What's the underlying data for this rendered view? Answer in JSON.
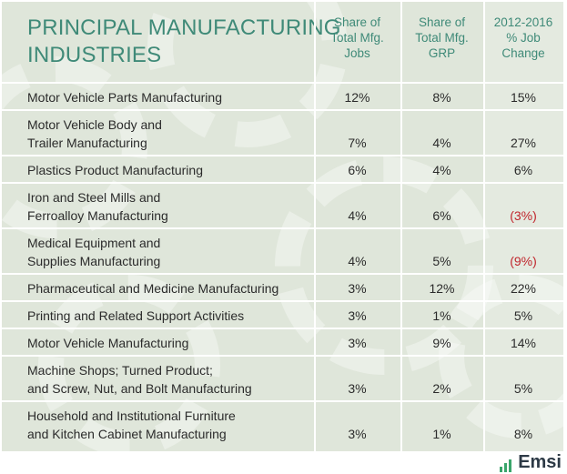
{
  "header": {
    "title": [
      "PRINCIPAL MANUFACTURING",
      "INDUSTRIES"
    ],
    "columns": [
      [
        "Share of",
        "Total Mfg.",
        "Jobs"
      ],
      [
        "Share of",
        "Total Mfg.",
        "GRP"
      ],
      [
        "2012-2016",
        "% Job",
        "Change"
      ]
    ]
  },
  "rows": [
    {
      "name": [
        "Motor Vehicle Parts Manufacturing"
      ],
      "cells": [
        "12%",
        "8%",
        "15%"
      ]
    },
    {
      "name": [
        "Motor Vehicle Body and",
        "Trailer Manufacturing"
      ],
      "cells": [
        "7%",
        "4%",
        "27%"
      ]
    },
    {
      "name": [
        "Plastics Product Manufacturing"
      ],
      "cells": [
        "6%",
        "4%",
        "6%"
      ]
    },
    {
      "name": [
        "Iron and Steel Mills and",
        "Ferroalloy Manufacturing"
      ],
      "cells": [
        "4%",
        "6%",
        "(3%)"
      ]
    },
    {
      "name": [
        "Medical Equipment and",
        "Supplies Manufacturing"
      ],
      "cells": [
        "4%",
        "5%",
        "(9%)"
      ]
    },
    {
      "name": [
        "Pharmaceutical and Medicine Manufacturing"
      ],
      "cells": [
        "3%",
        "12%",
        "22%"
      ]
    },
    {
      "name": [
        "Printing and Related Support Activities"
      ],
      "cells": [
        "3%",
        "1%",
        "5%"
      ]
    },
    {
      "name": [
        "Motor Vehicle Manufacturing"
      ],
      "cells": [
        "3%",
        "9%",
        "14%"
      ]
    },
    {
      "name": [
        "Machine Shops; Turned Product;",
        "and Screw, Nut, and Bolt Manufacturing"
      ],
      "cells": [
        "3%",
        "2%",
        "5%"
      ]
    },
    {
      "name": [
        "Household and Institutional Furniture",
        "and Kitchen Cabinet Manufacturing"
      ],
      "cells": [
        "3%",
        "1%",
        "8%"
      ]
    }
  ],
  "footer": {
    "logo": "Emsi"
  }
}
